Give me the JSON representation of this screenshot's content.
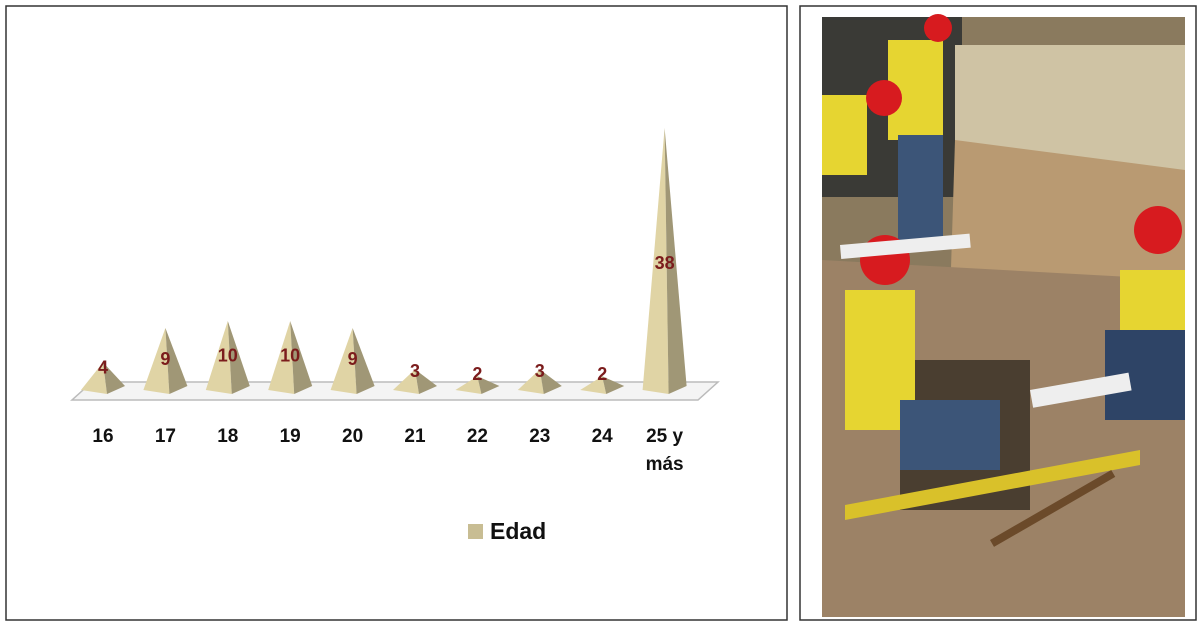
{
  "chart_data": {
    "type": "pyramid",
    "categories": [
      "16",
      "17",
      "18",
      "19",
      "20",
      "21",
      "22",
      "23",
      "24",
      "25 y más"
    ],
    "series": [
      {
        "name": "Edad",
        "color": "#c8bd93",
        "values": [
          4,
          9,
          10,
          10,
          9,
          3,
          2,
          3,
          2,
          38
        ]
      }
    ]
  }
}
